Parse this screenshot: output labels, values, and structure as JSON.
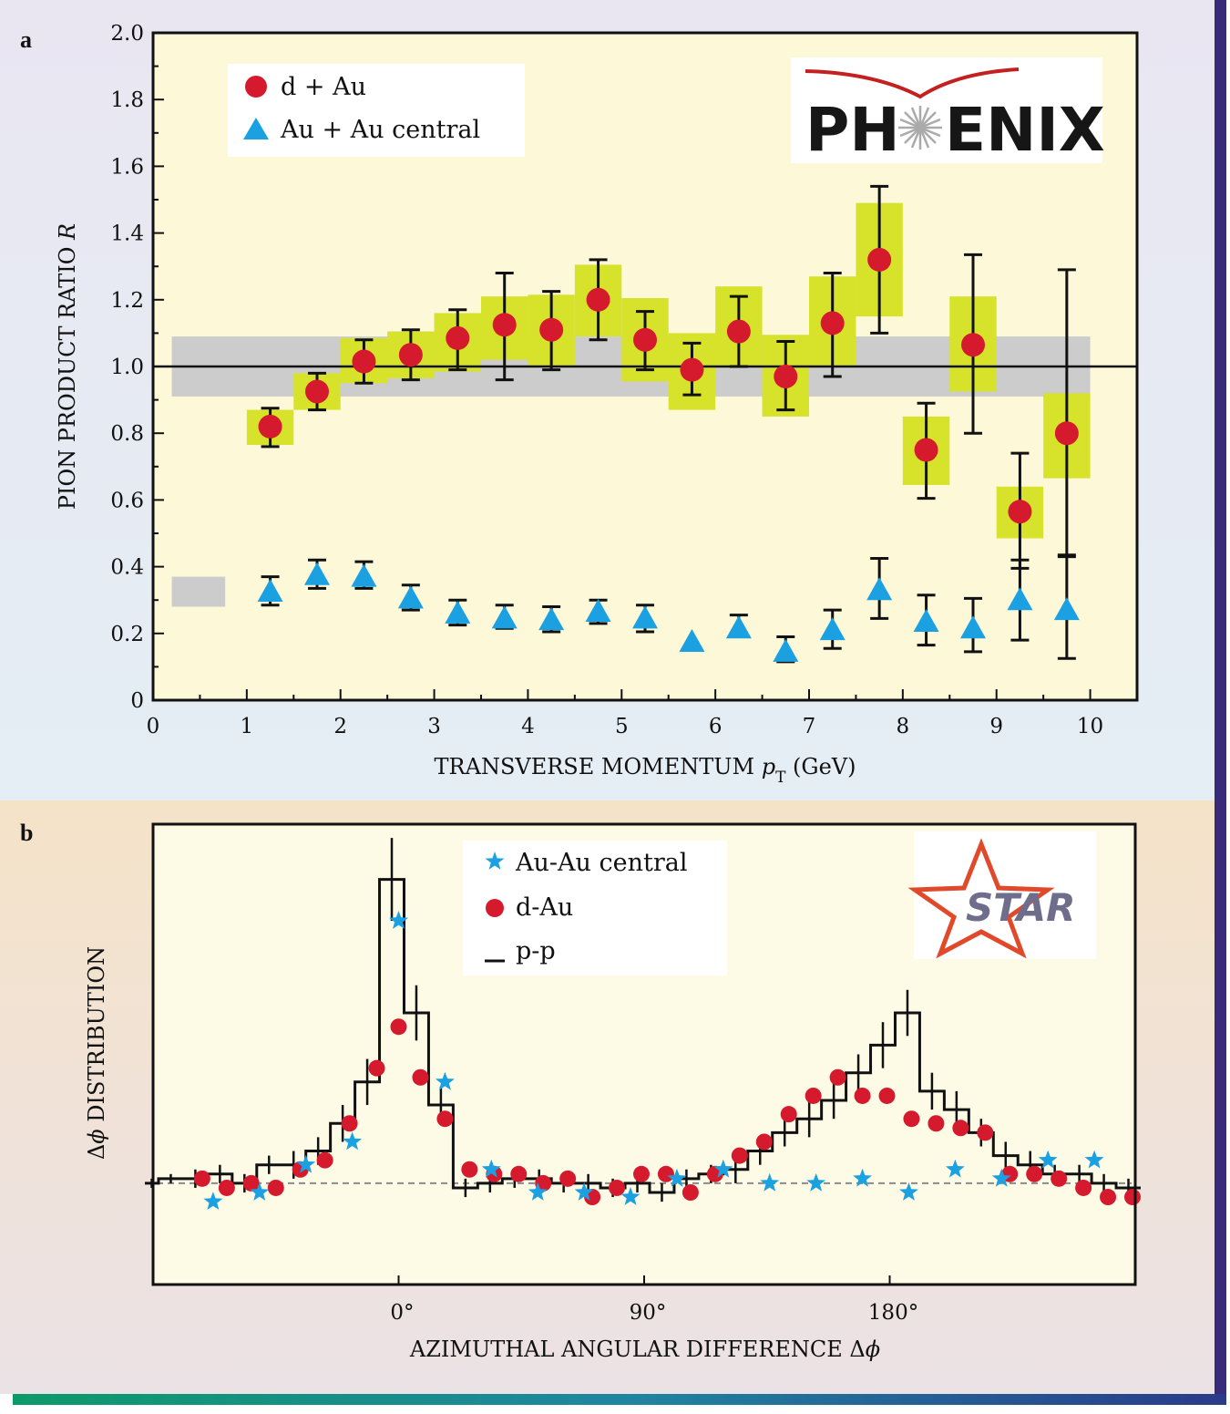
{
  "colors": {
    "top_bg": "#e9e6f2",
    "bottom_bg": "#f3e6d2",
    "plot_bg": "#fcf8d8",
    "frame_right": "#3a2a7a",
    "bar_bottom_from": "#0d9a6a",
    "bar_bottom_to": "#2a3a8a",
    "dau": "#d61a2e",
    "auau": "#1ba1e2",
    "sys_box": "#d7e22a",
    "gray_band": "#cccccc"
  },
  "chart_data": [
    {
      "panel_label": "a",
      "type": "scatter",
      "xlabel_main": "TRANSVERSE MOMENTUM ",
      "xlabel_var": "p",
      "xlabel_sub": "T",
      "xlabel_unit": " (GeV)",
      "ylabel_main": "PION PRODUCT RATIO ",
      "ylabel_var": "R",
      "xlim": [
        0,
        10.5
      ],
      "ylim": [
        0,
        2.0
      ],
      "xticks": [
        "0",
        "1",
        "2",
        "3",
        "4",
        "5",
        "6",
        "7",
        "8",
        "9",
        "10"
      ],
      "yticks": [
        "0",
        "0.2",
        "0.4",
        "0.6",
        "0.8",
        "1.0",
        "1.2",
        "1.4",
        "1.6",
        "1.8",
        "2.0"
      ],
      "reference_line": 1.0,
      "reference_band": [
        0.91,
        1.09
      ],
      "auau_norm_band": [
        0.28,
        0.37
      ],
      "logo": {
        "left": "PH",
        "right": "ENIX"
      },
      "legend_position": "top-left",
      "series": [
        {
          "name": "d + Au",
          "marker": "circle",
          "x": [
            1.25,
            1.75,
            2.25,
            2.75,
            3.25,
            3.75,
            4.25,
            4.75,
            5.25,
            5.75,
            6.25,
            6.75,
            7.25,
            7.75,
            8.25,
            8.75,
            9.25,
            9.75
          ],
          "y": [
            0.82,
            0.925,
            1.015,
            1.035,
            1.085,
            1.125,
            1.11,
            1.2,
            1.08,
            0.99,
            1.105,
            0.97,
            1.13,
            1.32,
            0.75,
            1.065,
            0.565,
            0.8
          ],
          "err_low": [
            0.76,
            0.87,
            0.95,
            0.96,
            0.99,
            0.96,
            0.99,
            1.08,
            0.99,
            0.915,
            1.0,
            0.87,
            0.97,
            1.1,
            0.605,
            0.8,
            0.395,
            0.435
          ],
          "err_high": [
            0.875,
            0.98,
            1.08,
            1.11,
            1.17,
            1.28,
            1.225,
            1.32,
            1.165,
            1.07,
            1.21,
            1.075,
            1.28,
            1.54,
            0.89,
            1.335,
            0.74,
            1.29
          ],
          "sys_low": [
            0.765,
            0.87,
            0.95,
            0.965,
            0.985,
            1.02,
            1.0,
            1.09,
            0.955,
            0.87,
            1.0,
            0.85,
            1.0,
            1.15,
            0.645,
            0.925,
            0.485,
            0.665
          ],
          "sys_high": [
            0.87,
            0.98,
            1.085,
            1.105,
            1.16,
            1.21,
            1.215,
            1.305,
            1.205,
            1.1,
            1.24,
            1.095,
            1.27,
            1.49,
            0.85,
            1.21,
            0.64,
            0.92
          ]
        },
        {
          "name": "Au + Au central",
          "marker": "triangle",
          "x": [
            1.25,
            1.75,
            2.25,
            2.75,
            3.25,
            3.75,
            4.25,
            4.75,
            5.25,
            5.75,
            6.25,
            6.75,
            7.25,
            7.75,
            8.25,
            8.75,
            9.25,
            9.75
          ],
          "y": [
            0.325,
            0.375,
            0.37,
            0.305,
            0.26,
            0.245,
            0.24,
            0.265,
            0.245,
            0.175,
            0.215,
            0.145,
            0.21,
            0.33,
            0.235,
            0.215,
            0.3,
            0.27
          ],
          "err_low": [
            0.285,
            0.335,
            0.335,
            0.27,
            0.225,
            0.215,
            0.205,
            0.23,
            0.205,
            null,
            0.19,
            0.115,
            0.155,
            0.245,
            0.165,
            0.145,
            0.18,
            0.125
          ],
          "err_high": [
            0.37,
            0.42,
            0.415,
            0.345,
            0.3,
            0.285,
            0.28,
            0.3,
            0.285,
            null,
            0.255,
            0.19,
            0.27,
            0.425,
            0.315,
            0.305,
            0.42,
            0.43
          ]
        }
      ]
    },
    {
      "panel_label": "b",
      "type": "scatter",
      "xlabel_main": "AZIMUTHAL ANGULAR DIFFERENCE Δ",
      "xlabel_var": "ϕ",
      "ylabel_main": "Δ",
      "ylabel_var": "ϕ",
      "ylabel_rest": " DISTRIBUTION",
      "xlim": [
        -90,
        270
      ],
      "ylim": [
        0,
        1
      ],
      "xticks": [
        "0°",
        "90°",
        "180°"
      ],
      "xtick_values": [
        0,
        90,
        180
      ],
      "baseline": 0.22,
      "logo": {
        "text": "STAR"
      },
      "legend_position": "top-center",
      "series": [
        {
          "name": "Au-Au central",
          "marker": "star",
          "x": [
            -68,
            -51,
            0,
            17,
            -17,
            -34,
            34,
            51,
            68,
            85,
            102,
            119,
            136,
            153,
            170,
            187,
            204,
            221,
            238,
            255
          ],
          "y": [
            0.18,
            0.2,
            0.79,
            0.44,
            0.31,
            0.26,
            0.25,
            0.2,
            0.2,
            0.19,
            0.23,
            0.25,
            0.22,
            0.22,
            0.23,
            0.2,
            0.25,
            0.23,
            0.27,
            0.27
          ]
        },
        {
          "name": "d-Au",
          "marker": "circle",
          "x": [
            -72,
            -63,
            -54,
            -45,
            -36,
            -27,
            -18,
            -8,
            0,
            8,
            17,
            26,
            35,
            44,
            53,
            62,
            71,
            80,
            89,
            98,
            107,
            116,
            125,
            134,
            143,
            152,
            161,
            170,
            179,
            188,
            197,
            206,
            215,
            224,
            233,
            242,
            251,
            260,
            269
          ],
          "y": [
            0.23,
            0.21,
            0.22,
            0.21,
            0.25,
            0.27,
            0.35,
            0.47,
            0.56,
            0.45,
            0.36,
            0.25,
            0.24,
            0.24,
            0.22,
            0.23,
            0.19,
            0.21,
            0.24,
            0.24,
            0.2,
            0.24,
            0.28,
            0.31,
            0.37,
            0.41,
            0.45,
            0.41,
            0.41,
            0.36,
            0.35,
            0.34,
            0.33,
            0.24,
            0.24,
            0.23,
            0.21,
            0.19,
            0.19
          ]
        },
        {
          "name": "p-p",
          "marker": "step",
          "edges": [
            -93,
            -88,
            -79,
            -70,
            -61,
            -52,
            -43,
            -34,
            -25,
            -16,
            -7,
            2,
            11,
            20,
            29,
            38,
            47,
            56,
            65,
            74,
            83,
            92,
            101,
            110,
            119,
            128,
            137,
            146,
            155,
            164,
            173,
            182,
            191,
            200,
            209,
            218,
            227,
            236,
            245,
            254,
            263,
            272
          ],
          "values": [
            0.22,
            0.23,
            0.23,
            0.24,
            0.22,
            0.26,
            0.26,
            0.29,
            0.35,
            0.44,
            0.88,
            0.59,
            0.39,
            0.21,
            0.22,
            0.23,
            0.23,
            0.22,
            0.22,
            0.21,
            0.22,
            0.2,
            0.23,
            0.24,
            0.25,
            0.29,
            0.33,
            0.36,
            0.4,
            0.46,
            0.52,
            0.59,
            0.42,
            0.38,
            0.33,
            0.28,
            0.26,
            0.24,
            0.24,
            0.22,
            0.21
          ],
          "errors": [
            0.01,
            0.01,
            0.02,
            0.02,
            0.02,
            0.02,
            0.03,
            0.03,
            0.04,
            0.05,
            0.09,
            0.06,
            0.04,
            0.02,
            0.02,
            0.02,
            0.02,
            0.02,
            0.02,
            0.02,
            0.02,
            0.02,
            0.02,
            0.02,
            0.03,
            0.03,
            0.03,
            0.04,
            0.04,
            0.04,
            0.05,
            0.05,
            0.04,
            0.04,
            0.03,
            0.03,
            0.03,
            0.02,
            0.02,
            0.02,
            0.02
          ]
        }
      ]
    }
  ]
}
